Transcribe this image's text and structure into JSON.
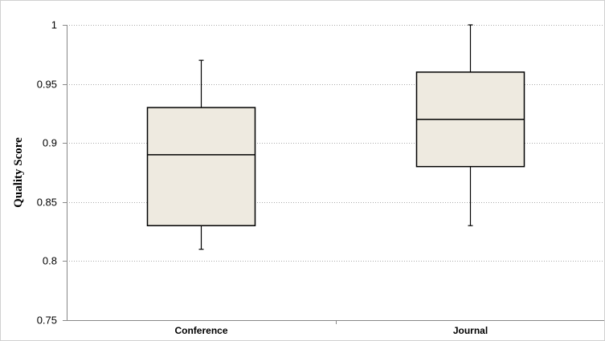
{
  "chart_data": {
    "type": "box",
    "title": "",
    "xlabel": "",
    "ylabel": "Quality Score",
    "ylim": [
      0.75,
      1.0
    ],
    "yticks": [
      0.75,
      0.8,
      0.85,
      0.9,
      0.95,
      1.0
    ],
    "ytick_labels": [
      "0.75",
      "0.8",
      "0.85",
      "0.9",
      "0.95",
      "1"
    ],
    "grid": "horizontal-dotted",
    "categories": [
      "Conference",
      "Journal"
    ],
    "boxes": [
      {
        "category": "Conference",
        "min": 0.81,
        "q1": 0.83,
        "median": 0.89,
        "q3": 0.93,
        "max": 0.97
      },
      {
        "category": "Journal",
        "min": 0.83,
        "q1": 0.88,
        "median": 0.92,
        "q3": 0.96,
        "max": 1.0
      }
    ],
    "colors": {
      "box_fill": "#eeeae0",
      "stroke": "#000000",
      "grid": "#aaaaaa",
      "axis": "#888888"
    }
  }
}
